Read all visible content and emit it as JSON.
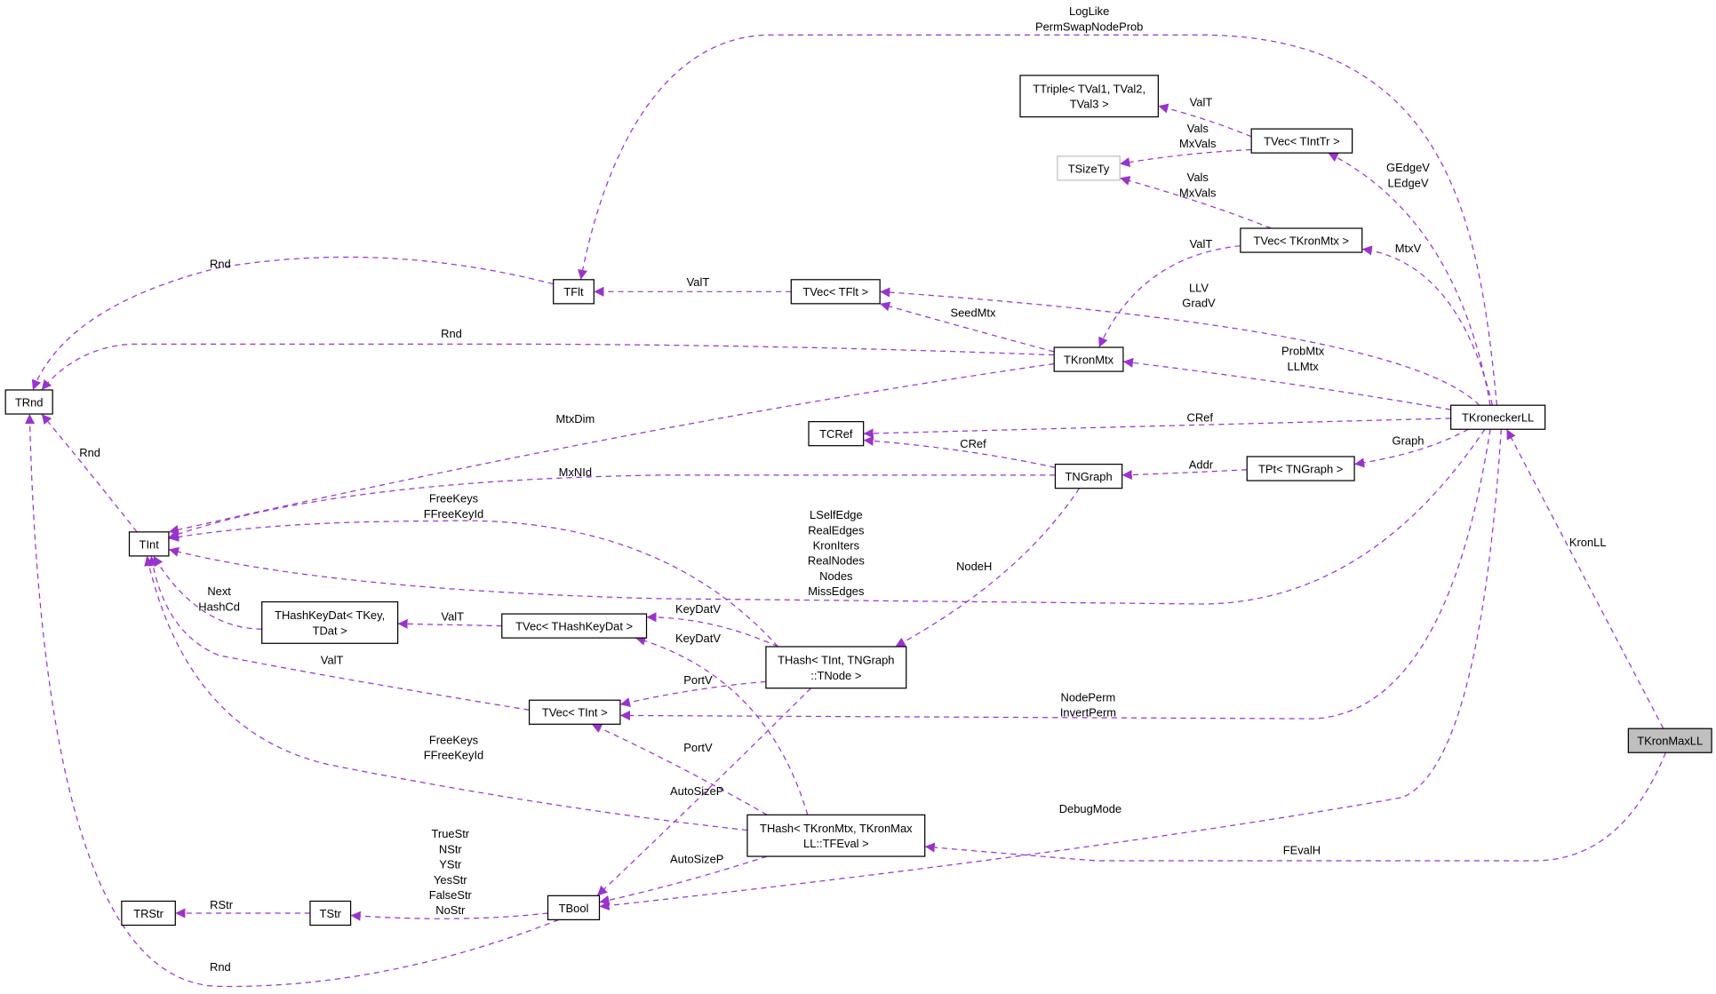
{
  "diagram": {
    "edge_color": "#9a32cd",
    "highlight_fill": "#bfbfbf",
    "muted_border": "#bfbfbf",
    "nodes": [
      {
        "id": "TTriple",
        "lines": [
          "TTriple< TVal1, TVal2,",
          "TVal3 >"
        ]
      },
      {
        "id": "TSizeTy",
        "lines": [
          "TSizeTy"
        ],
        "style": "muted"
      },
      {
        "id": "TVecTIntTr",
        "lines": [
          "TVec< TIntTr >"
        ]
      },
      {
        "id": "TVecTKronMtx",
        "lines": [
          "TVec< TKronMtx >"
        ]
      },
      {
        "id": "TFlt",
        "lines": [
          "TFlt"
        ]
      },
      {
        "id": "TVecTFlt",
        "lines": [
          "TVec< TFlt >"
        ]
      },
      {
        "id": "TKronMtx",
        "lines": [
          "TKronMtx"
        ]
      },
      {
        "id": "TRnd",
        "lines": [
          "TRnd"
        ]
      },
      {
        "id": "TKroneckerLL",
        "lines": [
          "TKroneckerLL"
        ]
      },
      {
        "id": "TCRef",
        "lines": [
          "TCRef"
        ]
      },
      {
        "id": "TNGraph",
        "lines": [
          "TNGraph"
        ]
      },
      {
        "id": "TPtTNGraph",
        "lines": [
          "TPt< TNGraph >"
        ]
      },
      {
        "id": "TInt",
        "lines": [
          "TInt"
        ]
      },
      {
        "id": "THashKeyDat",
        "lines": [
          "THashKeyDat< TKey,",
          "TDat >"
        ]
      },
      {
        "id": "TVecTHashKeyDat",
        "lines": [
          "TVec< THashKeyDat >"
        ]
      },
      {
        "id": "THashTIntTNGraph",
        "lines": [
          "THash< TInt, TNGraph",
          "::TNode >"
        ]
      },
      {
        "id": "TVecTInt",
        "lines": [
          "TVec< TInt >"
        ]
      },
      {
        "id": "TKronMaxLL",
        "lines": [
          "TKronMaxLL"
        ],
        "style": "highlight"
      },
      {
        "id": "THashTKronMtx",
        "lines": [
          "THash< TKronMtx, TKronMax",
          "LL::TFEval >"
        ]
      },
      {
        "id": "TRStr",
        "lines": [
          "TRStr"
        ]
      },
      {
        "id": "TStr",
        "lines": [
          "TStr"
        ]
      },
      {
        "id": "TBool",
        "lines": [
          "TBool"
        ]
      }
    ],
    "edges": [
      {
        "from": "TKroneckerLL",
        "to": "TFlt",
        "labels": [
          "LogLike",
          "PermSwapNodeProb"
        ]
      },
      {
        "from": "TVecTIntTr",
        "to": "TTriple",
        "labels": [
          "ValT"
        ]
      },
      {
        "from": "TVecTIntTr",
        "to": "TSizeTy",
        "labels": [
          "Vals",
          "MxVals"
        ]
      },
      {
        "from": "TVecTKronMtx",
        "to": "TSizeTy",
        "labels": [
          "Vals",
          "MxVals"
        ]
      },
      {
        "from": "TKroneckerLL",
        "to": "TVecTIntTr",
        "labels": [
          "GEdgeV",
          "LEdgeV"
        ]
      },
      {
        "from": "TKroneckerLL",
        "to": "TVecTKronMtx",
        "labels": [
          "MtxV"
        ]
      },
      {
        "from": "TVecTKronMtx",
        "to": "TKronMtx",
        "labels": [
          "ValT"
        ]
      },
      {
        "from": "TFlt",
        "to": "TRnd",
        "labels": [
          "Rnd"
        ]
      },
      {
        "from": "TVecTFlt",
        "to": "TFlt",
        "labels": [
          "ValT"
        ]
      },
      {
        "from": "TKroneckerLL",
        "to": "TVecTFlt",
        "labels": [
          "LLV",
          "GradV"
        ]
      },
      {
        "from": "TKronMtx",
        "to": "TVecTFlt",
        "labels": [
          "SeedMtx"
        ]
      },
      {
        "from": "TKronMtx",
        "to": "TRnd",
        "labels": [
          "Rnd"
        ]
      },
      {
        "from": "TKroneckerLL",
        "to": "TKronMtx",
        "labels": [
          "ProbMtx",
          "LLMtx"
        ]
      },
      {
        "from": "TKronMtx",
        "to": "TInt",
        "labels": [
          "MtxDim"
        ]
      },
      {
        "from": "TKroneckerLL",
        "to": "TCRef",
        "labels": [
          "CRef"
        ]
      },
      {
        "from": "TNGraph",
        "to": "TCRef",
        "labels": [
          "CRef"
        ]
      },
      {
        "from": "TKroneckerLL",
        "to": "TPtTNGraph",
        "labels": [
          "Graph"
        ]
      },
      {
        "from": "TPtTNGraph",
        "to": "TNGraph",
        "labels": [
          "Addr"
        ]
      },
      {
        "from": "TNGraph",
        "to": "TInt",
        "labels": [
          "MxNId"
        ]
      },
      {
        "from": "TKroneckerLL",
        "to": "TInt",
        "labels": [
          "LSelfEdge",
          "RealEdges",
          "KronIters",
          "RealNodes",
          "Nodes",
          "MissEdges"
        ]
      },
      {
        "from": "THashTIntTNGraph",
        "to": "TInt",
        "labels": [
          "FreeKeys",
          "FFreeKeyId"
        ]
      },
      {
        "from": "TNGraph",
        "to": "THashTIntTNGraph",
        "labels": [
          "NodeH"
        ]
      },
      {
        "from": "THashKeyDat",
        "to": "TInt",
        "labels": [
          "Next",
          "HashCd"
        ]
      },
      {
        "from": "TVecTHashKeyDat",
        "to": "THashKeyDat",
        "labels": [
          "ValT"
        ]
      },
      {
        "from": "THashTIntTNGraph",
        "to": "TVecTHashKeyDat",
        "labels": [
          "KeyDatV"
        ]
      },
      {
        "from": "THashTKronMtx",
        "to": "TVecTHashKeyDat",
        "labels": [
          "KeyDatV"
        ]
      },
      {
        "from": "TVecTInt",
        "to": "TInt",
        "labels": [
          "ValT"
        ]
      },
      {
        "from": "THashTIntTNGraph",
        "to": "TVecTInt",
        "labels": [
          "PortV"
        ]
      },
      {
        "from": "TKroneckerLL",
        "to": "TVecTInt",
        "labels": [
          "NodePerm",
          "InvertPerm"
        ]
      },
      {
        "from": "THashTKronMtx",
        "to": "TVecTInt",
        "labels": [
          "PortV"
        ]
      },
      {
        "from": "THashTKronMtx",
        "to": "TInt",
        "labels": [
          "FreeKeys",
          "FFreeKeyId"
        ]
      },
      {
        "from": "THashTIntTNGraph",
        "to": "TBool",
        "labels": [
          "AutoSizeP"
        ]
      },
      {
        "from": "THashTKronMtx",
        "to": "TBool",
        "labels": [
          "AutoSizeP"
        ]
      },
      {
        "from": "TKroneckerLL",
        "to": "TBool",
        "labels": [
          "DebugMode"
        ]
      },
      {
        "from": "TKronMaxLL",
        "to": "TKroneckerLL",
        "labels": [
          "KronLL"
        ]
      },
      {
        "from": "TKronMaxLL",
        "to": "THashTKronMtx",
        "labels": [
          "FEvalH"
        ]
      },
      {
        "from": "TStr",
        "to": "TRStr",
        "labels": [
          "RStr"
        ]
      },
      {
        "from": "TBool",
        "to": "TStr",
        "labels": [
          "TrueStr",
          "NStr",
          "YStr",
          "YesStr",
          "FalseStr",
          "NoStr"
        ]
      },
      {
        "from": "TBool",
        "to": "TRnd",
        "labels": [
          "Rnd"
        ]
      },
      {
        "from": "TInt",
        "to": "TRnd",
        "labels": [
          "Rnd"
        ]
      }
    ]
  }
}
